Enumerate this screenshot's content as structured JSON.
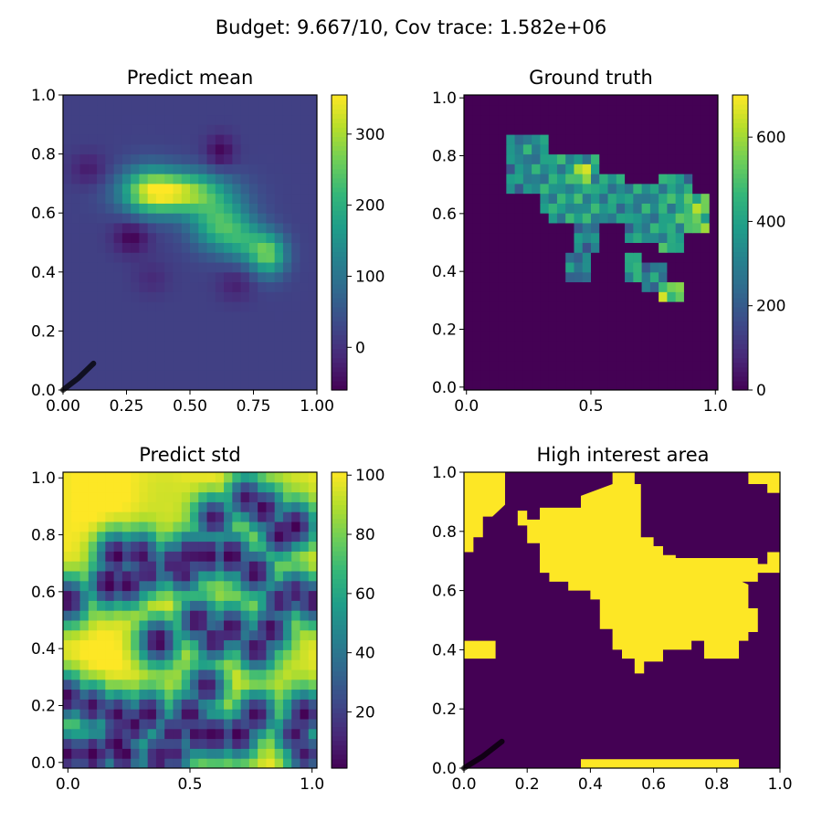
{
  "figure": {
    "suptitle": "Budget: 9.667/10,  Cov trace: 1.582e+06"
  },
  "colors": {
    "viridis": [
      "#440154",
      "#482878",
      "#3e4989",
      "#31688e",
      "#26828e",
      "#1f9e89",
      "#35b779",
      "#6ece58",
      "#b5de2b",
      "#fde725"
    ],
    "path": "#000000"
  },
  "chart_data": [
    {
      "type": "heatmap",
      "name": "predict-mean",
      "title": "Predict mean",
      "xlim": [
        0,
        1
      ],
      "ylim": [
        0,
        1
      ],
      "xticks": [
        "0.00",
        "0.25",
        "0.50",
        "0.75",
        "1.00"
      ],
      "yticks": [
        "0.0",
        "0.2",
        "0.4",
        "0.6",
        "0.8",
        "1.0"
      ],
      "grid_size": 30,
      "vmin": -60,
      "vmax": 355,
      "colorbar_ticks": [
        "0",
        "100",
        "200",
        "300"
      ],
      "colorbar_tick_values": [
        0,
        100,
        200,
        300
      ],
      "background_value": 20,
      "blobs": [
        {
          "x": 0.45,
          "y": 0.67,
          "sx": 0.13,
          "sy": 0.05,
          "amp": 300
        },
        {
          "x": 0.33,
          "y": 0.68,
          "sx": 0.07,
          "sy": 0.06,
          "amp": 130
        },
        {
          "x": 0.62,
          "y": 0.56,
          "sx": 0.08,
          "sy": 0.06,
          "amp": 200
        },
        {
          "x": 0.81,
          "y": 0.46,
          "sx": 0.05,
          "sy": 0.05,
          "amp": 220
        },
        {
          "x": 0.72,
          "y": 0.5,
          "sx": 0.06,
          "sy": 0.05,
          "amp": 110
        },
        {
          "x": 0.27,
          "y": 0.52,
          "sx": 0.05,
          "sy": 0.04,
          "amp": -80
        },
        {
          "x": 0.62,
          "y": 0.81,
          "sx": 0.04,
          "sy": 0.04,
          "amp": -75
        },
        {
          "x": 0.1,
          "y": 0.75,
          "sx": 0.05,
          "sy": 0.04,
          "amp": -50
        },
        {
          "x": 0.68,
          "y": 0.36,
          "sx": 0.05,
          "sy": 0.04,
          "amp": -45
        },
        {
          "x": 0.35,
          "y": 0.38,
          "sx": 0.05,
          "sy": 0.04,
          "amp": -30
        }
      ],
      "path_xy": [
        [
          0.0,
          0.0
        ],
        [
          0.03,
          0.02
        ],
        [
          0.06,
          0.04
        ],
        [
          0.09,
          0.065
        ],
        [
          0.12,
          0.09
        ]
      ]
    },
    {
      "type": "heatmap",
      "name": "ground-truth",
      "title": "Ground truth",
      "xlim": [
        -0.01,
        1.01
      ],
      "ylim": [
        -0.01,
        1.01
      ],
      "xticks": [
        "0.0",
        "0.5",
        "1.0"
      ],
      "yticks": [
        "0.0",
        "0.2",
        "0.4",
        "0.6",
        "0.8",
        "1.0"
      ],
      "grid_size": 30,
      "vmin": 0,
      "vmax": 700,
      "colorbar_ticks": [
        "0",
        "200",
        "400",
        "600"
      ],
      "colorbar_tick_values": [
        0,
        200,
        400,
        600
      ],
      "cells_description": "nonzero values in patches",
      "patches": [
        {
          "x0": 0.17,
          "x1": 0.28,
          "y0": 0.67,
          "y1": 0.89,
          "v": 330
        },
        {
          "x0": 0.28,
          "x1": 0.34,
          "y0": 0.6,
          "y1": 0.86,
          "v": 360
        },
        {
          "x0": 0.34,
          "x1": 0.55,
          "y0": 0.58,
          "y1": 0.8,
          "v": 380
        },
        {
          "x0": 0.42,
          "x1": 0.53,
          "y0": 0.48,
          "y1": 0.6,
          "v": 300
        },
        {
          "x0": 0.55,
          "x1": 0.64,
          "y0": 0.58,
          "y1": 0.73,
          "v": 350
        },
        {
          "x0": 0.64,
          "x1": 0.77,
          "y0": 0.5,
          "y1": 0.7,
          "v": 340
        },
        {
          "x0": 0.77,
          "x1": 0.86,
          "y0": 0.46,
          "y1": 0.74,
          "v": 400
        },
        {
          "x0": 0.86,
          "x1": 0.97,
          "y0": 0.54,
          "y1": 0.66,
          "v": 520
        },
        {
          "x0": 0.8,
          "x1": 0.9,
          "y0": 0.67,
          "y1": 0.74,
          "v": 310
        },
        {
          "x0": 0.4,
          "x1": 0.5,
          "y0": 0.37,
          "y1": 0.46,
          "v": 280
        },
        {
          "x0": 0.63,
          "x1": 0.72,
          "y0": 0.37,
          "y1": 0.48,
          "v": 420
        },
        {
          "x0": 0.72,
          "x1": 0.79,
          "y0": 0.34,
          "y1": 0.42,
          "v": 300
        },
        {
          "x0": 0.76,
          "x1": 0.86,
          "y0": 0.3,
          "y1": 0.38,
          "v": 520
        },
        {
          "x0": 0.42,
          "x1": 0.5,
          "y0": 0.72,
          "y1": 0.77,
          "v": 580
        }
      ]
    },
    {
      "type": "heatmap",
      "name": "predict-std",
      "title": "Predict std",
      "xlim": [
        -0.02,
        1.02
      ],
      "ylim": [
        -0.02,
        1.02
      ],
      "xticks": [
        "0.0",
        "0.5",
        "1.0"
      ],
      "yticks": [
        "0.0",
        "0.2",
        "0.4",
        "0.6",
        "0.8",
        "1.0"
      ],
      "grid_size": 30,
      "vmin": 1,
      "vmax": 101,
      "colorbar_ticks": [
        "20",
        "40",
        "60",
        "80",
        "100"
      ],
      "colorbar_tick_values": [
        20,
        40,
        60,
        80,
        100
      ],
      "max_value": 100,
      "samples_xy": [
        [
          0.2,
          0.73
        ],
        [
          0.3,
          0.73
        ],
        [
          0.17,
          0.63
        ],
        [
          0.25,
          0.63
        ],
        [
          0.33,
          0.67
        ],
        [
          0.43,
          0.7
        ],
        [
          0.5,
          0.73
        ],
        [
          0.57,
          0.73
        ],
        [
          0.67,
          0.73
        ],
        [
          0.47,
          0.67
        ],
        [
          0.6,
          0.86
        ],
        [
          0.73,
          0.93
        ],
        [
          0.8,
          0.89
        ],
        [
          0.87,
          0.8
        ],
        [
          0.93,
          0.83
        ],
        [
          0.77,
          0.67
        ],
        [
          0.87,
          0.57
        ],
        [
          0.83,
          0.47
        ],
        [
          0.77,
          0.4
        ],
        [
          0.67,
          0.47
        ],
        [
          0.53,
          0.5
        ],
        [
          0.6,
          0.43
        ],
        [
          0.57,
          0.27
        ],
        [
          0.5,
          0.17
        ],
        [
          0.43,
          0.1
        ],
        [
          0.53,
          0.1
        ],
        [
          0.6,
          0.1
        ],
        [
          0.7,
          0.1
        ],
        [
          0.77,
          0.17
        ],
        [
          0.93,
          0.1
        ],
        [
          0.97,
          0.17
        ],
        [
          0.97,
          0.03
        ],
        [
          0.43,
          0.03
        ],
        [
          0.37,
          0.03
        ],
        [
          0.2,
          0.07
        ],
        [
          0.23,
          0.03
        ],
        [
          0.1,
          0.03
        ],
        [
          0.0,
          0.03
        ],
        [
          0.1,
          0.2
        ],
        [
          0.0,
          0.23
        ],
        [
          0.2,
          0.17
        ],
        [
          0.27,
          0.13
        ],
        [
          0.33,
          0.17
        ],
        [
          0.37,
          0.43
        ],
        [
          0.0,
          0.57
        ],
        [
          0.37,
          0.0
        ],
        [
          0.93,
          0.6
        ],
        [
          1.0,
          0.57
        ]
      ],
      "radius": 0.09
    },
    {
      "type": "heatmap",
      "name": "high-interest-area",
      "title": "High interest area",
      "xlim": [
        0,
        1
      ],
      "ylim": [
        0,
        1
      ],
      "xticks": [
        "0.0",
        "0.2",
        "0.4",
        "0.6",
        "0.8",
        "1.0"
      ],
      "yticks": [
        "0.0",
        "0.2",
        "0.4",
        "0.6",
        "0.8",
        "1.0"
      ],
      "binary": true,
      "regions": [
        [
          [
            0.0,
            0.73
          ],
          [
            0.03,
            0.73
          ],
          [
            0.03,
            0.78
          ],
          [
            0.06,
            0.78
          ],
          [
            0.06,
            0.85
          ],
          [
            0.09,
            0.85
          ],
          [
            0.13,
            0.89
          ],
          [
            0.13,
            1.0
          ],
          [
            0.0,
            1.0
          ]
        ],
        [
          [
            0.17,
            0.87
          ],
          [
            0.2,
            0.87
          ],
          [
            0.2,
            0.84
          ],
          [
            0.24,
            0.84
          ],
          [
            0.24,
            0.88
          ],
          [
            0.37,
            0.88
          ],
          [
            0.37,
            0.92
          ],
          [
            0.47,
            0.96
          ],
          [
            0.47,
            1.0
          ],
          [
            0.54,
            1.0
          ],
          [
            0.54,
            0.96
          ],
          [
            0.56,
            0.96
          ],
          [
            0.56,
            0.78
          ],
          [
            0.6,
            0.78
          ],
          [
            0.6,
            0.75
          ],
          [
            0.63,
            0.75
          ],
          [
            0.63,
            0.72
          ],
          [
            0.67,
            0.72
          ],
          [
            0.67,
            0.71
          ],
          [
            0.93,
            0.71
          ],
          [
            0.93,
            0.69
          ],
          [
            0.96,
            0.69
          ],
          [
            0.96,
            0.73
          ],
          [
            1.0,
            0.73
          ],
          [
            1.0,
            0.66
          ],
          [
            0.93,
            0.66
          ],
          [
            0.93,
            0.63
          ],
          [
            0.88,
            0.63
          ],
          [
            0.9,
            0.62
          ],
          [
            0.9,
            0.54
          ],
          [
            0.93,
            0.54
          ],
          [
            0.93,
            0.46
          ],
          [
            0.9,
            0.46
          ],
          [
            0.9,
            0.43
          ],
          [
            0.87,
            0.43
          ],
          [
            0.87,
            0.37
          ],
          [
            0.76,
            0.37
          ],
          [
            0.76,
            0.43
          ],
          [
            0.72,
            0.43
          ],
          [
            0.72,
            0.4
          ],
          [
            0.63,
            0.4
          ],
          [
            0.63,
            0.36
          ],
          [
            0.57,
            0.36
          ],
          [
            0.57,
            0.32
          ],
          [
            0.54,
            0.32
          ],
          [
            0.54,
            0.37
          ],
          [
            0.5,
            0.37
          ],
          [
            0.5,
            0.4
          ],
          [
            0.47,
            0.4
          ],
          [
            0.47,
            0.47
          ],
          [
            0.43,
            0.47
          ],
          [
            0.43,
            0.57
          ],
          [
            0.4,
            0.57
          ],
          [
            0.4,
            0.6
          ],
          [
            0.33,
            0.6
          ],
          [
            0.33,
            0.63
          ],
          [
            0.27,
            0.63
          ],
          [
            0.27,
            0.66
          ],
          [
            0.24,
            0.66
          ],
          [
            0.24,
            0.76
          ],
          [
            0.2,
            0.76
          ],
          [
            0.2,
            0.82
          ],
          [
            0.17,
            0.82
          ]
        ],
        [
          [
            0.0,
            0.37
          ],
          [
            0.1,
            0.37
          ],
          [
            0.1,
            0.43
          ],
          [
            0.0,
            0.43
          ]
        ],
        [
          [
            0.37,
            0.0
          ],
          [
            0.87,
            0.0
          ],
          [
            0.87,
            0.03
          ],
          [
            0.37,
            0.03
          ]
        ],
        [
          [
            0.9,
            0.96
          ],
          [
            1.0,
            0.96
          ],
          [
            1.0,
            1.0
          ],
          [
            0.9,
            1.0
          ]
        ],
        [
          [
            0.96,
            0.93
          ],
          [
            1.0,
            0.93
          ],
          [
            1.0,
            0.96
          ],
          [
            0.96,
            0.96
          ]
        ]
      ],
      "path_xy": [
        [
          0.0,
          0.0
        ],
        [
          0.03,
          0.02
        ],
        [
          0.06,
          0.04
        ],
        [
          0.09,
          0.065
        ],
        [
          0.12,
          0.09
        ]
      ]
    }
  ]
}
